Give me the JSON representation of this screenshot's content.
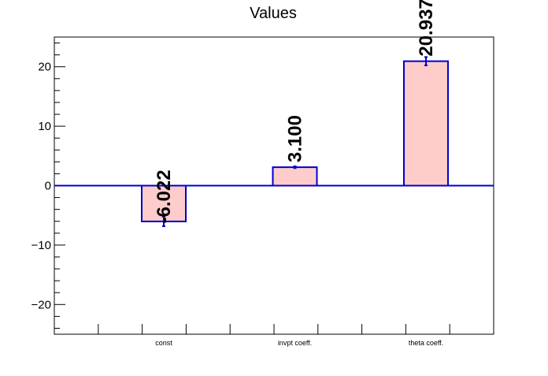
{
  "chart_data": {
    "type": "bar",
    "title": "Values",
    "xlabel": "",
    "ylabel": "",
    "ylim": [
      -25,
      25
    ],
    "yticks": [
      -20,
      -10,
      0,
      10,
      20
    ],
    "ytick_labels": [
      "−20",
      "−10",
      "0",
      "10",
      "20"
    ],
    "categories": [
      "const",
      "invpt coeff.",
      "theta coeff."
    ],
    "values": [
      -6.022,
      3.1,
      20.937
    ],
    "value_labels": [
      "-6.022",
      "3.100",
      "20.937"
    ],
    "errors": [
      0.8,
      0.15,
      0.7
    ],
    "grid": false,
    "legend": "none",
    "colors": {
      "bar_fill": "#ffcccc",
      "bar_edge": "#0000cc",
      "zero_line": "#0000cc",
      "frame": "#000000",
      "text": "#000000"
    }
  }
}
